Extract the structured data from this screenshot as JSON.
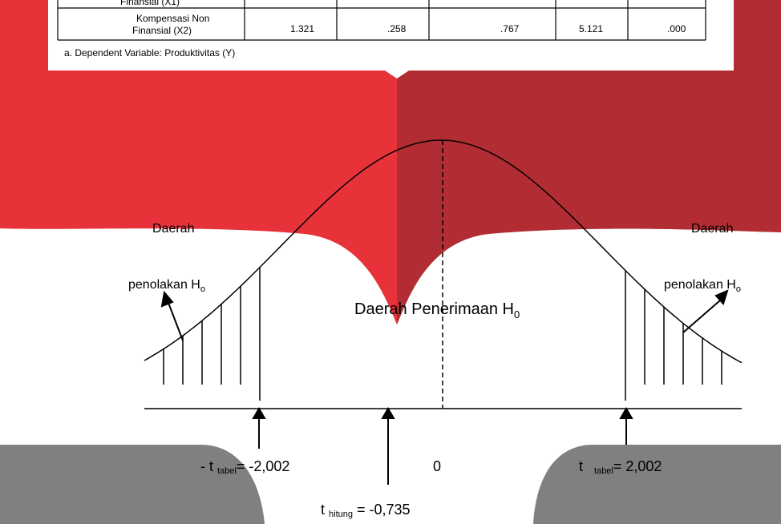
{
  "table": {
    "rows": [
      [
        "Finansial (X1)"
      ],
      [
        [
          "Kompensasi Non",
          "Finansial (X2)"
        ],
        "1.321",
        ".258",
        ".767",
        "5.121",
        ".000"
      ]
    ],
    "footnote": "a. Dependent Variable: Produktivitas (Y)"
  },
  "left_region": {
    "line1": "Daerah",
    "line2": "penolakan H",
    "sub": "o"
  },
  "right_region": {
    "line1": "Daerah",
    "line2": "penolakan H",
    "sub": "o"
  },
  "accept_region": {
    "text": "Daerah Penerimaan H",
    "sub": "0"
  },
  "t_left": {
    "pre": "- t",
    "sub": "tabel",
    "post": "= -2,002"
  },
  "zero": "0",
  "t_right": {
    "pre": "t",
    "sub": "tabel",
    "post": "=    2,002"
  },
  "t_hitung": {
    "pre": "t",
    "sub": "hitung",
    "post": " = -0,735"
  }
}
